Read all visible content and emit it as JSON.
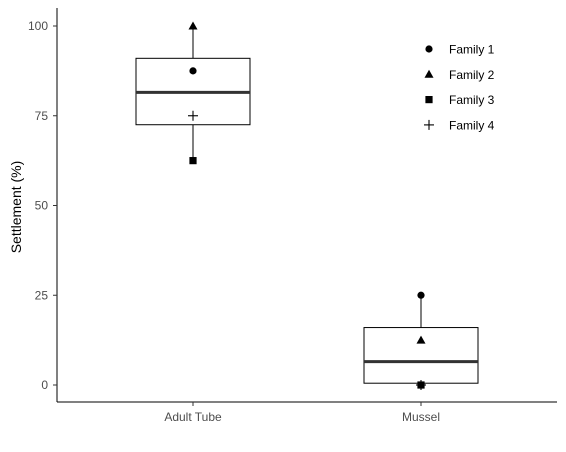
{
  "chart_data": {
    "type": "box",
    "ylabel": "Settlement (%)",
    "xlabel": "",
    "ylim": [
      -4.5,
      105
    ],
    "yticks": [
      0,
      25,
      50,
      75,
      100
    ],
    "ytick_labels": [
      "0",
      "25",
      "50",
      "75",
      "100"
    ],
    "categories": [
      "Adult Tube",
      "Mussel"
    ],
    "boxes": [
      {
        "category": "Adult Tube",
        "min": 62.5,
        "q1": 72.5,
        "median": 81.5,
        "q3": 91,
        "max": 100
      },
      {
        "category": "Mussel",
        "min": 0,
        "q1": 0.5,
        "median": 6.5,
        "q3": 16,
        "max": 25
      }
    ],
    "series": [
      {
        "name": "Family 1",
        "marker": "circle",
        "values": [
          87.5,
          25
        ]
      },
      {
        "name": "Family 2",
        "marker": "triangle",
        "values": [
          100,
          12.5
        ]
      },
      {
        "name": "Family 3",
        "marker": "square",
        "values": [
          62.5,
          0
        ]
      },
      {
        "name": "Family 4",
        "marker": "plus",
        "values": [
          75,
          0
        ]
      }
    ],
    "legend_position": "top-right",
    "grid": false
  }
}
